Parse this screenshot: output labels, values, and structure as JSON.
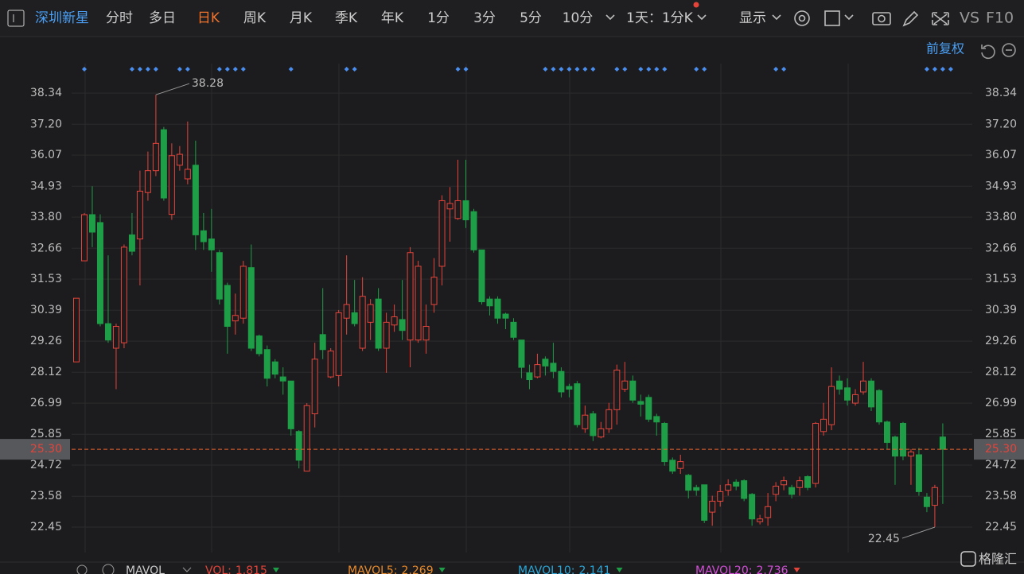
{
  "toolbar": {
    "stock_name": "深圳新星",
    "tabs": [
      "分时",
      "多日",
      "日K",
      "周K",
      "月K",
      "季K",
      "年K",
      "1分",
      "3分",
      "5分",
      "10分"
    ],
    "interval": "1天：1分K",
    "display": "显示",
    "vs": "VS",
    "f10": "F10"
  },
  "adjust": "前复权",
  "chart_data": {
    "type": "candlestick",
    "ohlc": [
      [
        28.5,
        30.83,
        28.5,
        30.83
      ],
      [
        32.2,
        33.95,
        32.2,
        33.89
      ],
      [
        33.89,
        34.93,
        32.7,
        33.25
      ],
      [
        33.6,
        33.9,
        29.8,
        29.9
      ],
      [
        29.9,
        32.4,
        29.2,
        29.3
      ],
      [
        29.0,
        29.9,
        27.5,
        29.8
      ],
      [
        29.2,
        32.8,
        29.0,
        32.7
      ],
      [
        33.15,
        33.95,
        32.4,
        32.55
      ],
      [
        33.0,
        35.5,
        31.3,
        34.75
      ],
      [
        34.7,
        36.2,
        34.4,
        35.5
      ],
      [
        35.5,
        38.28,
        35.3,
        36.5
      ],
      [
        37.0,
        37.1,
        34.4,
        34.5
      ],
      [
        33.9,
        36.5,
        33.7,
        36.05
      ],
      [
        35.7,
        36.4,
        35.5,
        36.1
      ],
      [
        35.2,
        37.3,
        35.0,
        35.55
      ],
      [
        35.7,
        36.6,
        32.6,
        33.15
      ],
      [
        33.3,
        33.95,
        32.6,
        32.9
      ],
      [
        33.0,
        34.1,
        31.8,
        32.6
      ],
      [
        32.5,
        32.6,
        30.6,
        30.8
      ],
      [
        31.3,
        31.4,
        28.8,
        29.8
      ],
      [
        30.0,
        31.0,
        29.5,
        30.2
      ],
      [
        30.1,
        32.2,
        29.9,
        32.0
      ],
      [
        31.95,
        32.8,
        28.9,
        29.0
      ],
      [
        29.45,
        29.5,
        28.7,
        28.8
      ],
      [
        28.95,
        29.1,
        27.6,
        27.9
      ],
      [
        28.5,
        28.6,
        27.9,
        28.05
      ],
      [
        27.95,
        28.3,
        27.3,
        27.8
      ],
      [
        27.8,
        27.8,
        25.8,
        26.05
      ],
      [
        25.95,
        26.0,
        24.6,
        24.9
      ],
      [
        24.5,
        26.99,
        24.5,
        26.9
      ],
      [
        26.6,
        29.2,
        26.1,
        28.6
      ],
      [
        29.5,
        31.2,
        28.6,
        28.95
      ],
      [
        27.95,
        29.0,
        27.9,
        28.9
      ],
      [
        28.0,
        30.4,
        27.6,
        30.3
      ],
      [
        30.1,
        32.4,
        29.5,
        30.6
      ],
      [
        30.3,
        31.5,
        29.8,
        29.9
      ],
      [
        29.0,
        31.6,
        28.9,
        30.9
      ],
      [
        29.95,
        30.8,
        29.3,
        30.6
      ],
      [
        30.8,
        31.2,
        28.9,
        29.0
      ],
      [
        29.0,
        30.3,
        28.1,
        29.95
      ],
      [
        29.85,
        30.6,
        29.6,
        30.15
      ],
      [
        30.05,
        31.5,
        29.3,
        29.65
      ],
      [
        29.3,
        32.7,
        28.3,
        32.5
      ],
      [
        29.3,
        32.2,
        29.2,
        32.0
      ],
      [
        29.3,
        30.6,
        28.8,
        29.8
      ],
      [
        30.6,
        32.3,
        30.3,
        31.6
      ],
      [
        32.0,
        34.6,
        31.3,
        34.4
      ],
      [
        34.1,
        34.9,
        32.9,
        34.3
      ],
      [
        33.75,
        35.9,
        33.7,
        34.4
      ],
      [
        34.4,
        35.9,
        33.4,
        33.7
      ],
      [
        34.0,
        34.1,
        32.5,
        32.6
      ],
      [
        32.6,
        32.6,
        30.6,
        30.7
      ],
      [
        30.8,
        30.9,
        30.2,
        30.55
      ],
      [
        30.8,
        30.9,
        29.9,
        30.1
      ],
      [
        30.25,
        30.3,
        29.7,
        30.1
      ],
      [
        29.95,
        30.1,
        29.3,
        29.4
      ],
      [
        29.3,
        29.3,
        27.9,
        28.3
      ],
      [
        28.1,
        28.4,
        27.5,
        27.85
      ],
      [
        27.95,
        28.8,
        27.9,
        28.4
      ],
      [
        28.6,
        28.7,
        28.0,
        28.35
      ],
      [
        28.45,
        29.2,
        27.9,
        28.15
      ],
      [
        28.15,
        28.3,
        27.2,
        27.4
      ],
      [
        27.6,
        27.7,
        27.2,
        27.5
      ],
      [
        27.7,
        27.8,
        26.1,
        26.2
      ],
      [
        26.05,
        26.9,
        25.9,
        26.55
      ],
      [
        26.6,
        26.7,
        25.6,
        25.8
      ],
      [
        25.75,
        26.3,
        25.7,
        26.05
      ],
      [
        26.05,
        27.0,
        25.9,
        26.75
      ],
      [
        26.75,
        28.4,
        26.2,
        28.2
      ],
      [
        27.5,
        28.5,
        27.4,
        27.8
      ],
      [
        27.8,
        28.0,
        27.0,
        27.1
      ],
      [
        27.05,
        27.3,
        26.5,
        26.95
      ],
      [
        27.2,
        27.3,
        26.3,
        26.4
      ],
      [
        26.5,
        26.6,
        25.8,
        26.3
      ],
      [
        26.25,
        26.3,
        24.7,
        24.85
      ],
      [
        24.9,
        25.0,
        24.4,
        24.5
      ],
      [
        24.6,
        25.1,
        24.4,
        24.85
      ],
      [
        24.35,
        24.4,
        23.5,
        23.8
      ],
      [
        23.9,
        24.0,
        23.6,
        23.8
      ],
      [
        24.0,
        24.0,
        22.6,
        22.7
      ],
      [
        23.0,
        23.6,
        22.5,
        23.4
      ],
      [
        23.4,
        24.0,
        23.2,
        23.75
      ],
      [
        23.8,
        24.2,
        23.6,
        24.0
      ],
      [
        24.1,
        24.2,
        23.8,
        23.95
      ],
      [
        24.15,
        24.2,
        23.4,
        23.5
      ],
      [
        23.65,
        23.7,
        22.5,
        22.75
      ],
      [
        22.65,
        22.9,
        22.55,
        22.75
      ],
      [
        22.8,
        23.7,
        22.5,
        23.2
      ],
      [
        23.65,
        24.1,
        23.4,
        23.95
      ],
      [
        24.0,
        24.3,
        23.8,
        24.15
      ],
      [
        23.9,
        24.0,
        23.5,
        23.65
      ],
      [
        23.9,
        24.3,
        23.6,
        24.15
      ],
      [
        24.3,
        24.35,
        23.8,
        23.9
      ],
      [
        24.05,
        26.3,
        23.9,
        26.25
      ],
      [
        25.95,
        27.0,
        25.8,
        26.4
      ],
      [
        26.2,
        28.3,
        26.0,
        27.6
      ],
      [
        27.8,
        28.0,
        27.3,
        27.5
      ],
      [
        27.55,
        27.9,
        26.9,
        27.1
      ],
      [
        26.99,
        27.5,
        26.9,
        27.3
      ],
      [
        27.4,
        28.5,
        27.3,
        27.8
      ],
      [
        27.8,
        27.9,
        26.7,
        26.85
      ],
      [
        27.45,
        27.5,
        26.2,
        26.3
      ],
      [
        26.3,
        26.35,
        25.3,
        25.55
      ],
      [
        25.75,
        25.8,
        24.0,
        25.05
      ],
      [
        26.25,
        26.3,
        24.9,
        25.05
      ],
      [
        25.05,
        25.3,
        24.0,
        25.2
      ],
      [
        25.1,
        25.35,
        23.6,
        23.75
      ],
      [
        23.55,
        23.7,
        23.0,
        23.2
      ],
      [
        23.25,
        24.0,
        22.45,
        23.9
      ],
      [
        25.75,
        26.25,
        23.3,
        25.3
      ]
    ],
    "up_color": "#e5443b",
    "down_color": "#1e9e47",
    "ylim": [
      21.52,
      39.42
    ],
    "yticks": [
      38.34,
      {
        "value": 37.2,
        "label": "37.20"
      },
      36.07,
      34.93,
      {
        "value": 33.8,
        "label": "33.80"
      },
      32.66,
      31.53,
      30.39,
      29.26,
      28.12,
      26.99,
      25.85,
      24.72,
      23.58,
      22.45
    ],
    "grid": true,
    "last_price": {
      "value": 25.3,
      "label": "25.30"
    },
    "last_price_color": "#e8622c"
  },
  "volume_bar": {
    "title": "MAVOL",
    "items": [
      {
        "label": "VOL:",
        "value": 1.815,
        "color": "#e5443b"
      },
      {
        "label": "MAVOL5:",
        "value": 2.269,
        "color": "#e88a2c"
      },
      {
        "label": "MAVOL10:",
        "value": 2.141,
        "color": "#2aa6d8"
      },
      {
        "label": "MAVOL20:",
        "value": 2.736,
        "color": "#d34fd8"
      }
    ]
  },
  "logo": "格隆汇"
}
